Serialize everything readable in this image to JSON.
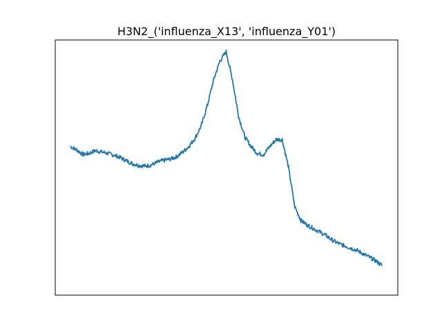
{
  "chart_data": {
    "type": "line",
    "title": "H3N2_('influenza_X13', 'influenza_Y01')",
    "xlabel": "",
    "ylabel": "",
    "show_ticks": false,
    "grid": false,
    "color": "#1f77b4",
    "x": [
      0.0,
      0.02,
      0.04,
      0.06,
      0.08,
      0.1,
      0.12,
      0.14,
      0.16,
      0.18,
      0.2,
      0.22,
      0.24,
      0.26,
      0.28,
      0.3,
      0.32,
      0.34,
      0.36,
      0.38,
      0.4,
      0.42,
      0.44,
      0.46,
      0.48,
      0.5,
      0.52,
      0.54,
      0.56,
      0.58,
      0.6,
      0.62,
      0.64,
      0.66,
      0.68,
      0.7,
      0.72,
      0.74,
      0.76,
      0.78,
      0.8,
      0.82,
      0.84,
      0.86,
      0.88,
      0.9,
      0.92,
      0.94,
      0.96,
      0.98,
      1.0
    ],
    "y": [
      0.59,
      0.575,
      0.555,
      0.56,
      0.572,
      0.566,
      0.56,
      0.552,
      0.542,
      0.528,
      0.515,
      0.508,
      0.505,
      0.51,
      0.522,
      0.53,
      0.535,
      0.545,
      0.565,
      0.59,
      0.625,
      0.68,
      0.77,
      0.88,
      0.96,
      1.0,
      0.88,
      0.72,
      0.63,
      0.59,
      0.56,
      0.555,
      0.59,
      0.62,
      0.62,
      0.5,
      0.33,
      0.27,
      0.25,
      0.235,
      0.22,
      0.205,
      0.185,
      0.17,
      0.16,
      0.15,
      0.14,
      0.125,
      0.11,
      0.095,
      0.075
    ],
    "xlim": [
      0,
      1
    ],
    "ylim": [
      0,
      1
    ]
  }
}
